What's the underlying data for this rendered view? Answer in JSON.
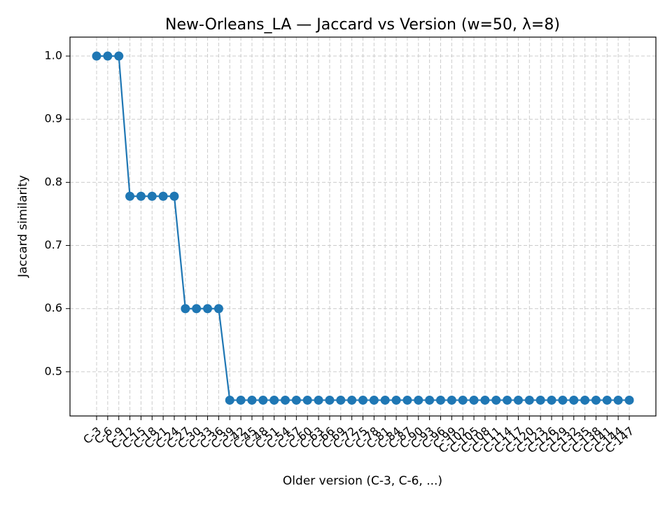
{
  "chart_data": {
    "type": "line",
    "title": "New-Orleans_LA — Jaccard vs Version (w=50, λ=8)",
    "xlabel": "Older version (C-3, C-6, ...)",
    "ylabel": "Jaccard similarity",
    "grid": true,
    "ylim": [
      0.43,
      1.03
    ],
    "yticks": [
      0.5,
      0.6,
      0.7,
      0.8,
      0.9,
      1.0
    ],
    "ytick_labels": [
      "0.5",
      "0.6",
      "0.7",
      "0.8",
      "0.9",
      "1.0"
    ],
    "categories": [
      "C-3",
      "C-6",
      "C-9",
      "C-12",
      "C-15",
      "C-18",
      "C-21",
      "C-24",
      "C-27",
      "C-30",
      "C-33",
      "C-36",
      "C-39",
      "C-42",
      "C-45",
      "C-48",
      "C-51",
      "C-54",
      "C-57",
      "C-60",
      "C-63",
      "C-66",
      "C-69",
      "C-72",
      "C-75",
      "C-78",
      "C-81",
      "C-84",
      "C-87",
      "C-90",
      "C-93",
      "C-96",
      "C-99",
      "C-102",
      "C-105",
      "C-108",
      "C-111",
      "C-114",
      "C-117",
      "C-120",
      "C-123",
      "C-126",
      "C-129",
      "C-132",
      "C-135",
      "C-138",
      "C-141",
      "C-144",
      "C-147"
    ],
    "series": [
      {
        "color": "#1f77b4",
        "values": [
          1.0,
          1.0,
          1.0,
          0.778,
          0.778,
          0.778,
          0.778,
          0.778,
          0.6,
          0.6,
          0.6,
          0.6,
          0.455,
          0.455,
          0.455,
          0.455,
          0.455,
          0.455,
          0.455,
          0.455,
          0.455,
          0.455,
          0.455,
          0.455,
          0.455,
          0.455,
          0.455,
          0.455,
          0.455,
          0.455,
          0.455,
          0.455,
          0.455,
          0.455,
          0.455,
          0.455,
          0.455,
          0.455,
          0.455,
          0.455,
          0.455,
          0.455,
          0.455,
          0.455,
          0.455,
          0.455,
          0.455,
          0.455,
          0.455
        ]
      }
    ]
  }
}
